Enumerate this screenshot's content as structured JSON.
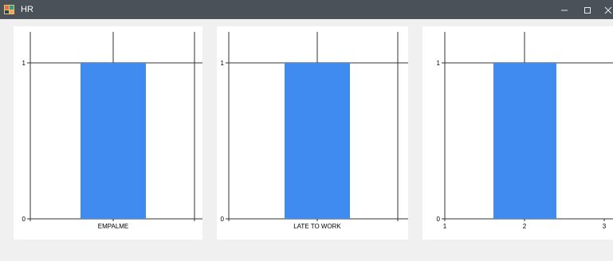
{
  "window": {
    "title": "HR",
    "minimize_icon": "minimize-icon",
    "maximize_icon": "maximize-icon",
    "close_icon": "close-icon"
  },
  "colors": {
    "bar": "#3f8bef",
    "titlebar": "#4b5159",
    "background": "#f0f0f0"
  },
  "chart_data": [
    {
      "type": "bar",
      "categories": [
        "EMPALME"
      ],
      "values": [
        1
      ],
      "ylim": [
        0,
        1
      ],
      "y_ticks": [
        "0",
        "1"
      ],
      "x_ticks": [
        "EMPALME"
      ],
      "grid": false
    },
    {
      "type": "bar",
      "categories": [
        "LATE TO WORK"
      ],
      "values": [
        1
      ],
      "ylim": [
        0,
        1
      ],
      "y_ticks": [
        "0",
        "1"
      ],
      "x_ticks": [
        "LATE TO WORK"
      ],
      "grid": false
    },
    {
      "type": "bar",
      "categories": [
        "2"
      ],
      "values": [
        1
      ],
      "ylim": [
        0,
        1
      ],
      "y_ticks": [
        "0",
        "1"
      ],
      "x_ticks": [
        "1",
        "2",
        "3"
      ],
      "grid": false
    }
  ]
}
